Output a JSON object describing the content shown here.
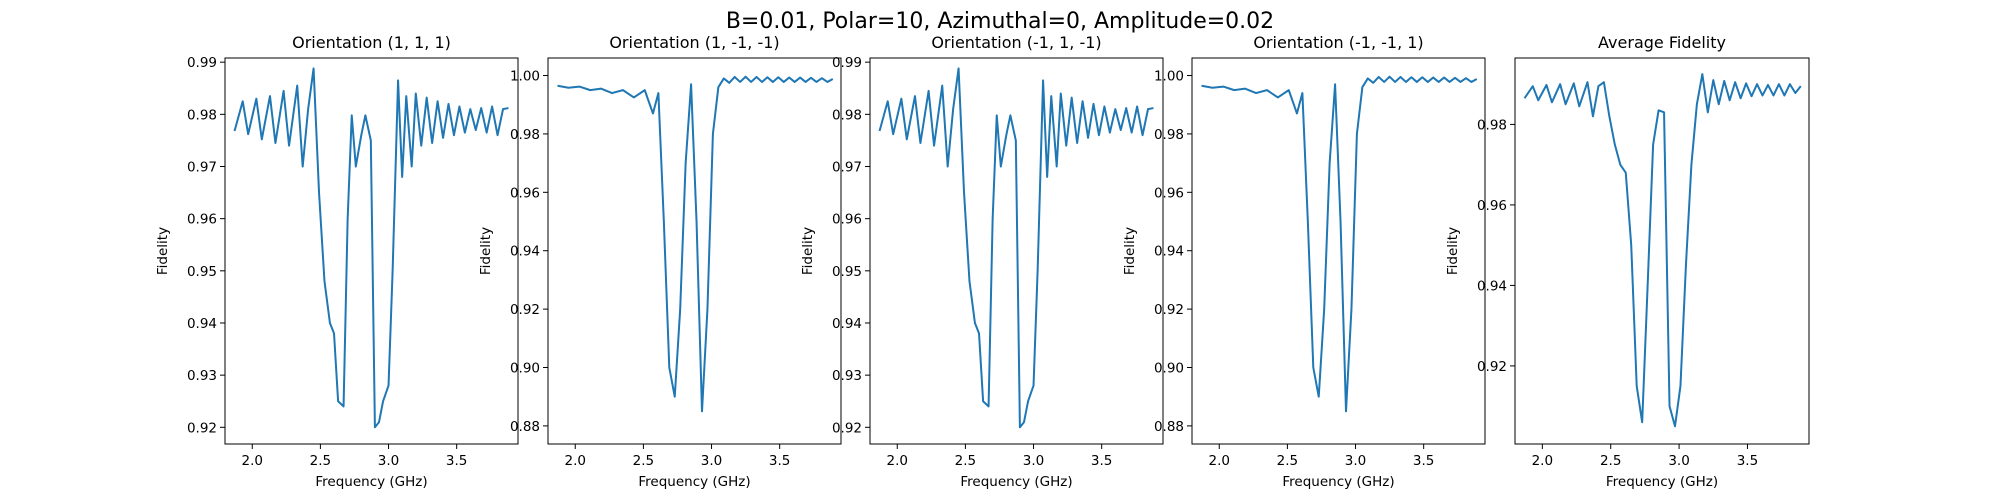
{
  "figure": {
    "suptitle": "B=0.01, Polar=10, Azimuthal=0, Amplitude=0.02",
    "line_color": "#1f77b4"
  },
  "chart_data": [
    {
      "type": "line",
      "title": "Orientation (1, 1, 1)",
      "xlabel": "Frequency (GHz)",
      "ylabel": "Fidelity",
      "xlim": [
        1.8,
        3.95
      ],
      "ylim": [
        0.9168,
        0.9908
      ],
      "xticks": [
        2.0,
        2.5,
        3.0,
        3.5
      ],
      "xtick_labels": [
        "2.0",
        "2.5",
        "3.0",
        "3.5"
      ],
      "yticks": [
        0.92,
        0.93,
        0.94,
        0.95,
        0.96,
        0.97,
        0.98,
        0.99
      ],
      "ytick_labels": [
        "0.92",
        "0.93",
        "0.94",
        "0.95",
        "0.96",
        "0.97",
        "0.98",
        "0.99"
      ],
      "grid": false,
      "x": [
        1.87,
        1.93,
        1.97,
        2.03,
        2.07,
        2.13,
        2.17,
        2.23,
        2.27,
        2.33,
        2.37,
        2.41,
        2.45,
        2.49,
        2.53,
        2.57,
        2.6,
        2.63,
        2.67,
        2.7,
        2.73,
        2.76,
        2.8,
        2.83,
        2.87,
        2.9,
        2.93,
        2.96,
        3.0,
        3.03,
        3.07,
        3.1,
        3.13,
        3.17,
        3.2,
        3.24,
        3.28,
        3.32,
        3.36,
        3.4,
        3.44,
        3.48,
        3.52,
        3.56,
        3.6,
        3.64,
        3.68,
        3.72,
        3.76,
        3.8,
        3.84,
        3.88
      ],
      "series": [
        {
          "values": [
            0.9768,
            0.9825,
            0.9762,
            0.983,
            0.9752,
            0.9835,
            0.9745,
            0.9845,
            0.974,
            0.9855,
            0.97,
            0.981,
            0.9888,
            0.965,
            0.948,
            0.94,
            0.938,
            0.925,
            0.924,
            0.96,
            0.9798,
            0.97,
            0.976,
            0.9798,
            0.975,
            0.92,
            0.921,
            0.925,
            0.928,
            0.95,
            0.9865,
            0.968,
            0.9835,
            0.97,
            0.984,
            0.974,
            0.9832,
            0.9745,
            0.9825,
            0.9755,
            0.982,
            0.976,
            0.9815,
            0.9765,
            0.981,
            0.977,
            0.9812,
            0.9765,
            0.9815,
            0.976,
            0.981,
            0.9812
          ]
        }
      ]
    },
    {
      "type": "line",
      "title": "Orientation (1, -1, -1)",
      "xlabel": "Frequency (GHz)",
      "ylabel": "Fidelity",
      "xlim": [
        1.8,
        3.95
      ],
      "ylim": [
        0.8738,
        1.006
      ],
      "xticks": [
        2.0,
        2.5,
        3.0,
        3.5
      ],
      "xtick_labels": [
        "2.0",
        "2.5",
        "3.0",
        "3.5"
      ],
      "yticks": [
        0.88,
        0.9,
        0.92,
        0.94,
        0.96,
        0.98,
        1.0
      ],
      "ytick_labels": [
        "0.88",
        "0.90",
        "0.92",
        "0.94",
        "0.96",
        "0.98",
        "1.00"
      ],
      "grid": false,
      "x": [
        1.87,
        1.95,
        2.03,
        2.11,
        2.19,
        2.27,
        2.35,
        2.43,
        2.51,
        2.57,
        2.61,
        2.65,
        2.69,
        2.73,
        2.77,
        2.81,
        2.85,
        2.89,
        2.93,
        2.97,
        3.01,
        3.05,
        3.09,
        3.13,
        3.17,
        3.21,
        3.25,
        3.29,
        3.33,
        3.37,
        3.41,
        3.45,
        3.49,
        3.53,
        3.57,
        3.61,
        3.65,
        3.69,
        3.73,
        3.77,
        3.81,
        3.85,
        3.89
      ],
      "series": [
        {
          "values": [
            0.9965,
            0.9958,
            0.9962,
            0.995,
            0.9955,
            0.994,
            0.995,
            0.9925,
            0.995,
            0.987,
            0.994,
            0.95,
            0.9,
            0.89,
            0.92,
            0.97,
            0.997,
            0.95,
            0.885,
            0.92,
            0.98,
            0.996,
            0.999,
            0.9975,
            0.9995,
            0.9978,
            0.9996,
            0.9978,
            0.9995,
            0.9978,
            0.9994,
            0.9978,
            0.9994,
            0.9978,
            0.9993,
            0.9978,
            0.9993,
            0.9978,
            0.9992,
            0.9978,
            0.9991,
            0.9978,
            0.9988
          ]
        }
      ]
    },
    {
      "type": "line",
      "title": "Orientation (-1, 1, -1)",
      "xlabel": "Frequency (GHz)",
      "ylabel": "Fidelity",
      "xlim": [
        1.8,
        3.95
      ],
      "ylim": [
        0.9168,
        0.9908
      ],
      "xticks": [
        2.0,
        2.5,
        3.0,
        3.5
      ],
      "xtick_labels": [
        "2.0",
        "2.5",
        "3.0",
        "3.5"
      ],
      "yticks": [
        0.92,
        0.93,
        0.94,
        0.95,
        0.96,
        0.97,
        0.98,
        0.99
      ],
      "ytick_labels": [
        "0.92",
        "0.93",
        "0.94",
        "0.95",
        "0.96",
        "0.97",
        "0.98",
        "0.99"
      ],
      "grid": false,
      "x": [
        1.87,
        1.93,
        1.97,
        2.03,
        2.07,
        2.13,
        2.17,
        2.23,
        2.27,
        2.33,
        2.37,
        2.41,
        2.45,
        2.49,
        2.53,
        2.57,
        2.6,
        2.63,
        2.67,
        2.7,
        2.73,
        2.76,
        2.8,
        2.83,
        2.87,
        2.9,
        2.93,
        2.96,
        3.0,
        3.03,
        3.07,
        3.1,
        3.13,
        3.17,
        3.2,
        3.24,
        3.28,
        3.32,
        3.36,
        3.4,
        3.44,
        3.48,
        3.52,
        3.56,
        3.6,
        3.64,
        3.68,
        3.72,
        3.76,
        3.8,
        3.84,
        3.88
      ],
      "series": [
        {
          "values": [
            0.9768,
            0.9825,
            0.9762,
            0.983,
            0.9752,
            0.9835,
            0.9745,
            0.9845,
            0.974,
            0.9855,
            0.97,
            0.981,
            0.9888,
            0.965,
            0.948,
            0.94,
            0.938,
            0.925,
            0.924,
            0.96,
            0.9798,
            0.97,
            0.976,
            0.9798,
            0.975,
            0.92,
            0.921,
            0.925,
            0.928,
            0.95,
            0.9865,
            0.968,
            0.9835,
            0.97,
            0.984,
            0.974,
            0.9832,
            0.9745,
            0.9825,
            0.9755,
            0.982,
            0.976,
            0.9815,
            0.9765,
            0.981,
            0.977,
            0.9812,
            0.9765,
            0.9815,
            0.976,
            0.981,
            0.9812
          ]
        }
      ]
    },
    {
      "type": "line",
      "title": "Orientation (-1, -1, 1)",
      "xlabel": "Frequency (GHz)",
      "ylabel": "Fidelity",
      "xlim": [
        1.8,
        3.95
      ],
      "ylim": [
        0.8738,
        1.006
      ],
      "xticks": [
        2.0,
        2.5,
        3.0,
        3.5
      ],
      "xtick_labels": [
        "2.0",
        "2.5",
        "3.0",
        "3.5"
      ],
      "yticks": [
        0.88,
        0.9,
        0.92,
        0.94,
        0.96,
        0.98,
        1.0
      ],
      "ytick_labels": [
        "0.88",
        "0.90",
        "0.92",
        "0.94",
        "0.96",
        "0.98",
        "1.00"
      ],
      "grid": false,
      "x": [
        1.87,
        1.95,
        2.03,
        2.11,
        2.19,
        2.27,
        2.35,
        2.43,
        2.51,
        2.57,
        2.61,
        2.65,
        2.69,
        2.73,
        2.77,
        2.81,
        2.85,
        2.89,
        2.93,
        2.97,
        3.01,
        3.05,
        3.09,
        3.13,
        3.17,
        3.21,
        3.25,
        3.29,
        3.33,
        3.37,
        3.41,
        3.45,
        3.49,
        3.53,
        3.57,
        3.61,
        3.65,
        3.69,
        3.73,
        3.77,
        3.81,
        3.85,
        3.89
      ],
      "series": [
        {
          "values": [
            0.9965,
            0.9958,
            0.9962,
            0.995,
            0.9955,
            0.994,
            0.995,
            0.9925,
            0.995,
            0.987,
            0.994,
            0.95,
            0.9,
            0.89,
            0.92,
            0.97,
            0.997,
            0.95,
            0.885,
            0.92,
            0.98,
            0.996,
            0.999,
            0.9975,
            0.9995,
            0.9978,
            0.9996,
            0.9978,
            0.9995,
            0.9978,
            0.9994,
            0.9978,
            0.9994,
            0.9978,
            0.9993,
            0.9978,
            0.9993,
            0.9978,
            0.9992,
            0.9978,
            0.9991,
            0.9978,
            0.9988
          ]
        }
      ]
    },
    {
      "type": "line",
      "title": "Average Fidelity",
      "xlabel": "Frequency (GHz)",
      "ylabel": "Fidelity",
      "xlim": [
        1.8,
        3.95
      ],
      "ylim": [
        0.9006,
        0.9965
      ],
      "xticks": [
        2.0,
        2.5,
        3.0,
        3.5
      ],
      "xtick_labels": [
        "2.0",
        "2.5",
        "3.0",
        "3.5"
      ],
      "yticks": [
        0.92,
        0.94,
        0.96,
        0.98
      ],
      "ytick_labels": [
        "0.92",
        "0.94",
        "0.96",
        "0.98"
      ],
      "grid": false,
      "x": [
        1.87,
        1.93,
        1.97,
        2.03,
        2.07,
        2.13,
        2.17,
        2.23,
        2.27,
        2.33,
        2.37,
        2.41,
        2.45,
        2.49,
        2.53,
        2.57,
        2.61,
        2.65,
        2.69,
        2.73,
        2.77,
        2.81,
        2.85,
        2.89,
        2.93,
        2.97,
        3.01,
        3.05,
        3.09,
        3.13,
        3.17,
        3.21,
        3.25,
        3.29,
        3.33,
        3.37,
        3.41,
        3.45,
        3.49,
        3.53,
        3.57,
        3.61,
        3.65,
        3.69,
        3.73,
        3.77,
        3.81,
        3.85,
        3.89
      ],
      "series": [
        {
          "values": [
            0.9865,
            0.9895,
            0.986,
            0.9898,
            0.9855,
            0.99,
            0.985,
            0.9902,
            0.9845,
            0.9905,
            0.982,
            0.9895,
            0.9905,
            0.982,
            0.975,
            0.97,
            0.968,
            0.95,
            0.915,
            0.906,
            0.94,
            0.975,
            0.9835,
            0.983,
            0.91,
            0.905,
            0.915,
            0.945,
            0.97,
            0.985,
            0.9925,
            0.983,
            0.991,
            0.985,
            0.9908,
            0.986,
            0.9905,
            0.9865,
            0.9902,
            0.987,
            0.99,
            0.9872,
            0.9898,
            0.9872,
            0.99,
            0.9872,
            0.99,
            0.9878,
            0.9895
          ]
        }
      ]
    }
  ]
}
